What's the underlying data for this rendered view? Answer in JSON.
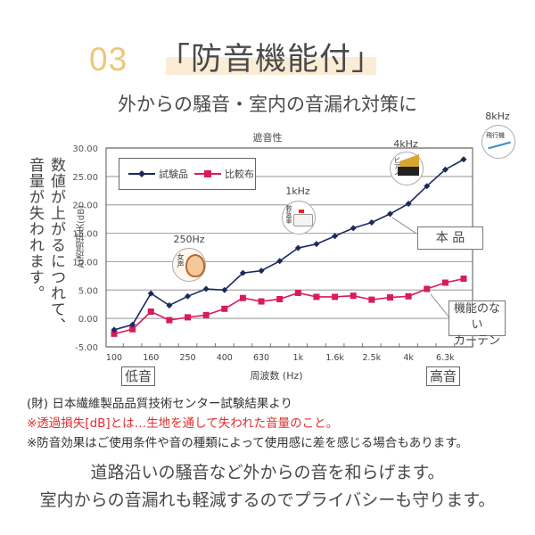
{
  "header": {
    "number": "03",
    "title": "「防音機能付」",
    "subtitle": "外からの騒音・室内の音漏れ対策に"
  },
  "side_note": {
    "line1": "数値が上がるにつれて、",
    "line2": "音量が失われます。"
  },
  "chart_data": {
    "type": "line",
    "title": "遮音性",
    "xlabel": "周波数 (Hz)",
    "ylabel": "AI透過損失(dB)",
    "ylim": [
      -5,
      30
    ],
    "yticks": [
      "30.00",
      "25.00",
      "20.00",
      "15.00",
      "10.00",
      "5.00",
      "0.00",
      "-5.00"
    ],
    "x": [
      "100",
      "125",
      "160",
      "200",
      "250",
      "315",
      "400",
      "500",
      "630",
      "800",
      "1k",
      "1.25k",
      "1.6k",
      "2k",
      "2.5k",
      "3.15k",
      "4k",
      "5k",
      "6.3k",
      "8k"
    ],
    "xtick_labels": [
      "100",
      "160",
      "250",
      "400",
      "630",
      "1k",
      "1.6k",
      "2.5k",
      "4k",
      "6.3k"
    ],
    "grid": true,
    "legend_position": "top-left",
    "series": [
      {
        "name": "試験品",
        "color": "#1a2a5e",
        "marker": "diamond",
        "values": [
          -2.0,
          -1.1,
          4.4,
          2.3,
          3.9,
          5.2,
          5.0,
          8.0,
          8.4,
          10.1,
          12.4,
          13.1,
          14.5,
          15.9,
          16.9,
          18.4,
          20.2,
          23.3,
          26.2,
          28.0
        ]
      },
      {
        "name": "比較布",
        "color": "#d81b5a",
        "marker": "square",
        "values": [
          -2.7,
          -1.9,
          1.2,
          -0.3,
          0.2,
          0.6,
          1.7,
          3.6,
          3.0,
          3.4,
          4.5,
          3.8,
          3.8,
          4.0,
          3.3,
          3.7,
          3.9,
          5.2,
          6.3,
          7.0
        ]
      }
    ],
    "annotations": [
      {
        "freq": "250Hz",
        "label": "女声",
        "icon": "woman-voice-icon"
      },
      {
        "freq": "1kHz",
        "label": "救急車",
        "icon": "ambulance-icon"
      },
      {
        "freq": "4kHz",
        "label": "ピアノ",
        "icon": "piano-icon"
      },
      {
        "freq": "8kHz",
        "label": "飛行機",
        "icon": "airplane-icon"
      }
    ],
    "callouts": {
      "product": "本 品",
      "plain_curtain": [
        "機能のない",
        "カーテン"
      ]
    },
    "range_labels": {
      "low": "低音",
      "high": "高音"
    }
  },
  "footnotes": {
    "source": "(財) 日本繊維製品品質技術センター試験結果より",
    "definition": "※透過損失[dB]とは…生地を通して失われた音量のこと。",
    "disclaimer": "※防音効果はご使用条件や音の種類によって使用感に差を感じる場合もあります。"
  },
  "closing": {
    "line1": "道路沿いの騒音など外からの音を和らげます。",
    "line2": "室内からの音漏れも軽減するのでプライバシーも守ります。"
  },
  "colors": {
    "accent_number": "#eec57a",
    "title_highlight": "#fbecd6",
    "warning_text": "#e02f2f"
  }
}
